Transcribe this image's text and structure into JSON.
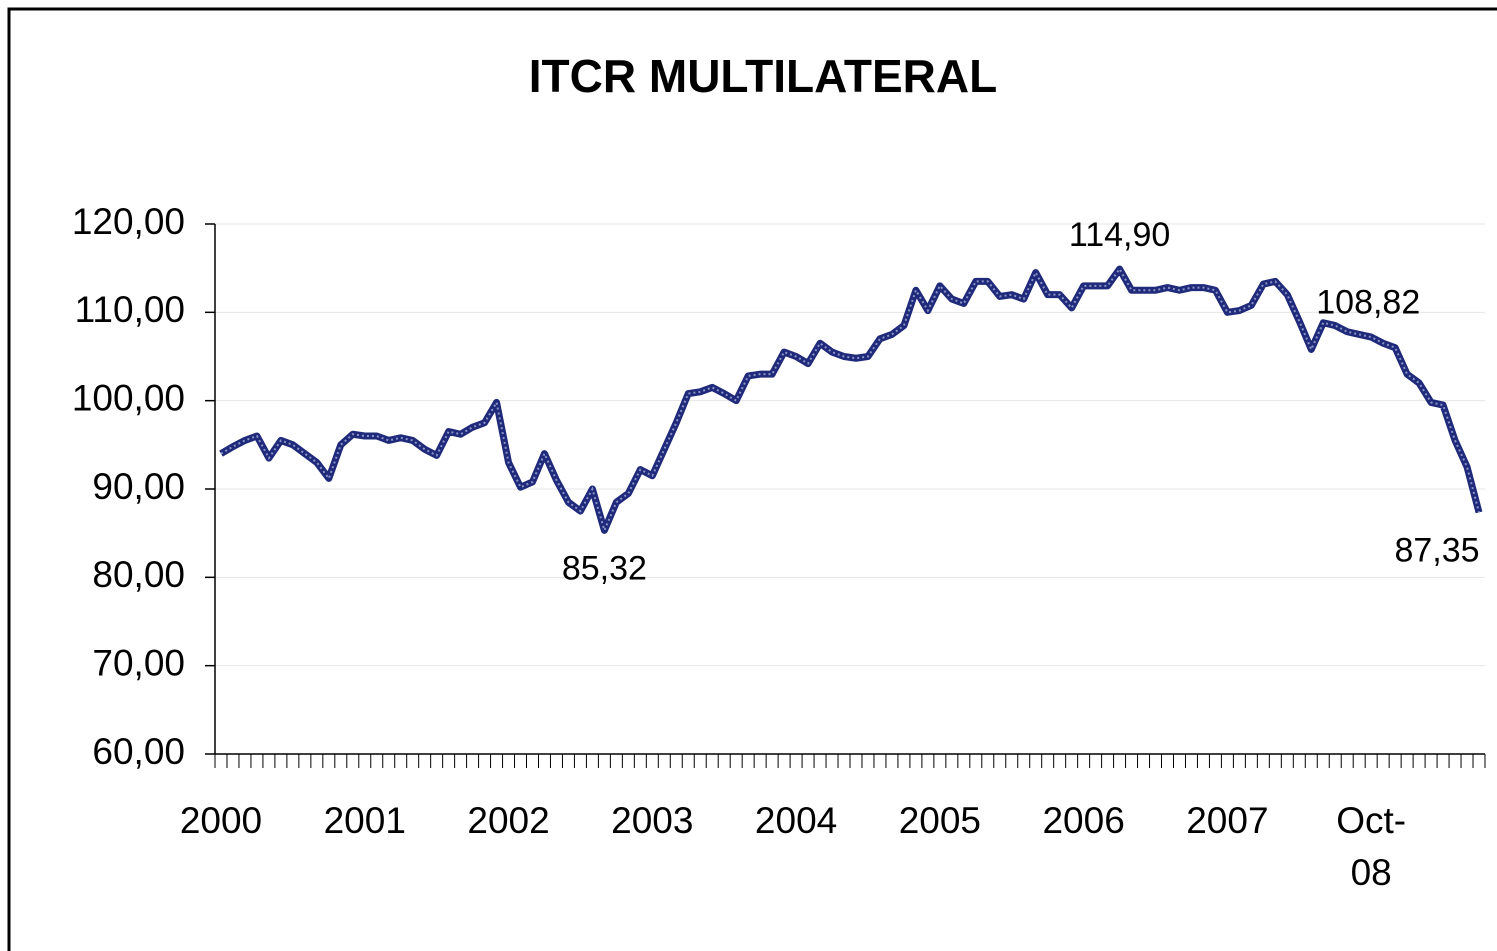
{
  "chart_data": {
    "type": "line",
    "title": "ITCR MULTILATERAL",
    "categories": [
      "2000",
      null,
      null,
      null,
      null,
      null,
      null,
      null,
      null,
      null,
      null,
      null,
      "2001",
      null,
      null,
      null,
      null,
      null,
      null,
      null,
      null,
      null,
      null,
      null,
      "2002",
      null,
      null,
      null,
      null,
      null,
      null,
      null,
      null,
      null,
      null,
      null,
      "2003",
      null,
      null,
      null,
      null,
      null,
      null,
      null,
      null,
      null,
      null,
      null,
      "2004",
      null,
      null,
      null,
      null,
      null,
      null,
      null,
      null,
      null,
      null,
      null,
      "2005",
      null,
      null,
      null,
      null,
      null,
      null,
      null,
      null,
      null,
      null,
      null,
      "2006",
      null,
      null,
      null,
      null,
      null,
      null,
      null,
      null,
      null,
      null,
      null,
      "2007",
      null,
      null,
      null,
      null,
      null,
      null,
      null,
      null,
      null,
      null,
      null,
      "Oct-08",
      null,
      null,
      null,
      null,
      null,
      null,
      null,
      null,
      null
    ],
    "series": [
      {
        "color": "#1f2a7a",
        "values": [
          94,
          94.8,
          95.5,
          96,
          93.5,
          95.5,
          95,
          94,
          93,
          91.2,
          95,
          96.2,
          96,
          96,
          95.5,
          95.8,
          95.5,
          94.5,
          93.8,
          96.5,
          96.2,
          97,
          97.5,
          99.8,
          93,
          90.2,
          90.8,
          94,
          91,
          88.5,
          87.5,
          90,
          85.32,
          88.5,
          89.5,
          92.2,
          91.5,
          94.5,
          97.5,
          100.8,
          101,
          101.5,
          100.8,
          100,
          102.8,
          103,
          103,
          105.5,
          105,
          104.2,
          106.5,
          105.5,
          105,
          104.8,
          105,
          107,
          107.5,
          108.5,
          112.5,
          110.2,
          113,
          111.5,
          111,
          113.5,
          113.5,
          111.8,
          112,
          111.5,
          114.5,
          112,
          112,
          110.5,
          113,
          113,
          113,
          114.9,
          112.5,
          112.5,
          112.5,
          112.8,
          112.5,
          112.8,
          112.8,
          112.5,
          110,
          110.2,
          110.8,
          113.2,
          113.5,
          112,
          109,
          105.8,
          108.82,
          108.5,
          107.8,
          107.5,
          107.2,
          106.5,
          106,
          103,
          102,
          99.8,
          99.5,
          95.5,
          92.5,
          87.35
        ],
        "value_labels": [
          null,
          null,
          null,
          null,
          null,
          null,
          null,
          null,
          null,
          null,
          null,
          null,
          null,
          null,
          null,
          null,
          null,
          null,
          null,
          null,
          null,
          null,
          null,
          null,
          null,
          null,
          null,
          null,
          null,
          null,
          null,
          null,
          "85,32",
          null,
          null,
          null,
          null,
          null,
          null,
          null,
          null,
          null,
          null,
          null,
          null,
          null,
          null,
          null,
          null,
          null,
          null,
          null,
          null,
          null,
          null,
          null,
          null,
          null,
          null,
          null,
          null,
          null,
          null,
          null,
          null,
          null,
          null,
          null,
          null,
          null,
          null,
          null,
          null,
          null,
          null,
          "114,90",
          null,
          null,
          null,
          null,
          null,
          null,
          null,
          null,
          null,
          null,
          null,
          null,
          null,
          null,
          null,
          null,
          "108,82",
          null,
          null,
          null,
          null,
          null,
          null,
          null,
          null,
          null,
          null,
          null,
          null,
          "87,35"
        ]
      }
    ],
    "ylim": [
      60,
      120
    ],
    "yticks": [
      {
        "value": 60,
        "label": "60,00"
      },
      {
        "value": 70,
        "label": "70,00"
      },
      {
        "value": 80,
        "label": "80,00"
      },
      {
        "value": 90,
        "label": "90,00"
      },
      {
        "value": 100,
        "label": "100,00"
      },
      {
        "value": 110,
        "label": "110,00"
      },
      {
        "value": 120,
        "label": "120,00"
      }
    ],
    "grid": true
  }
}
